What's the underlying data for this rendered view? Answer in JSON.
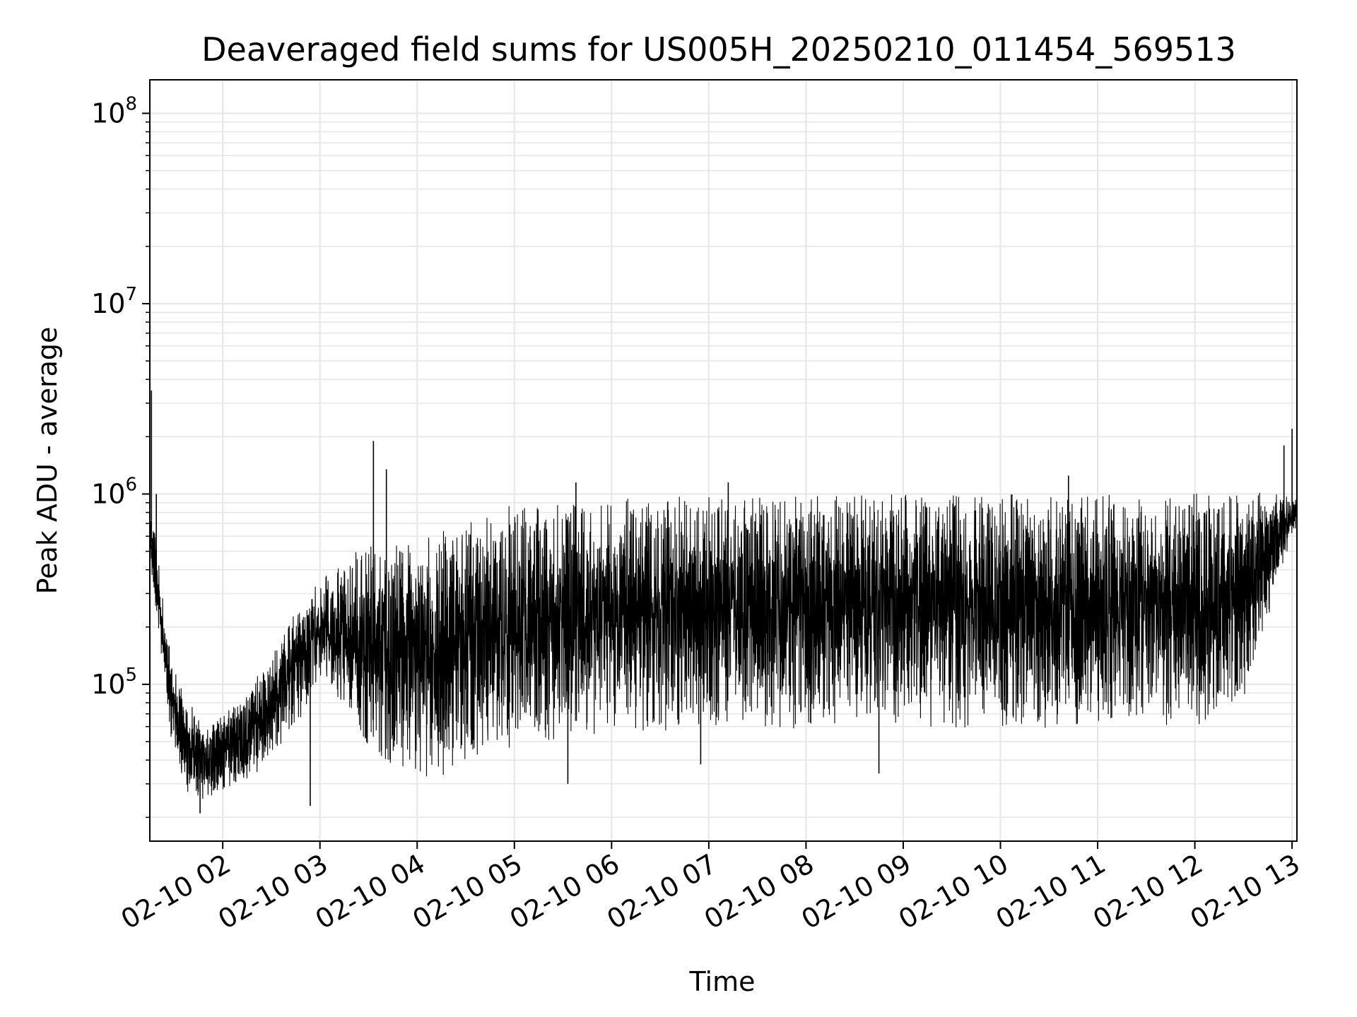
{
  "chart_data": {
    "type": "line",
    "title": "Deaveraged field sums for US005H_20250210_011454_569513",
    "xlabel": "Time",
    "ylabel": "Peak ADU - average",
    "yscale": "log",
    "ylim": [
      15000,
      150000000
    ],
    "xlim": [
      "2025-02-10 01:15",
      "2025-02-10 13:03"
    ],
    "grid": true,
    "line_color": "#000000",
    "grid_color": "#e6e6e6",
    "x_ticks": [
      {
        "t": "2025-02-10 02:00",
        "label": "02-10 02"
      },
      {
        "t": "2025-02-10 03:00",
        "label": "02-10 03"
      },
      {
        "t": "2025-02-10 04:00",
        "label": "02-10 04"
      },
      {
        "t": "2025-02-10 05:00",
        "label": "02-10 05"
      },
      {
        "t": "2025-02-10 06:00",
        "label": "02-10 06"
      },
      {
        "t": "2025-02-10 07:00",
        "label": "02-10 07"
      },
      {
        "t": "2025-02-10 08:00",
        "label": "02-10 08"
      },
      {
        "t": "2025-02-10 09:00",
        "label": "02-10 09"
      },
      {
        "t": "2025-02-10 10:00",
        "label": "02-10 10"
      },
      {
        "t": "2025-02-10 11:00",
        "label": "02-10 11"
      },
      {
        "t": "2025-02-10 12:00",
        "label": "02-10 12"
      },
      {
        "t": "2025-02-10 13:00",
        "label": "02-10 13"
      }
    ],
    "y_ticks": [
      {
        "value": 100000,
        "base": "10",
        "exp": "5"
      },
      {
        "value": 1000000,
        "base": "10",
        "exp": "6"
      },
      {
        "value": 10000000,
        "base": "10",
        "exp": "7"
      },
      {
        "value": 100000000,
        "base": "10",
        "exp": "8"
      }
    ],
    "envelope": [
      {
        "t": "2025-02-10 01:15",
        "low": 450000,
        "high": 900000
      },
      {
        "t": "2025-02-10 01:20",
        "low": 200000,
        "high": 500000
      },
      {
        "t": "2025-02-10 01:25",
        "low": 80000,
        "high": 200000
      },
      {
        "t": "2025-02-10 01:30",
        "low": 40000,
        "high": 120000
      },
      {
        "t": "2025-02-10 01:40",
        "low": 25000,
        "high": 80000
      },
      {
        "t": "2025-02-10 01:50",
        "low": 25000,
        "high": 60000
      },
      {
        "t": "2025-02-10 02:00",
        "low": 28000,
        "high": 70000
      },
      {
        "t": "2025-02-10 02:15",
        "low": 30000,
        "high": 90000
      },
      {
        "t": "2025-02-10 02:30",
        "low": 40000,
        "high": 150000
      },
      {
        "t": "2025-02-10 02:45",
        "low": 60000,
        "high": 250000
      },
      {
        "t": "2025-02-10 03:00",
        "low": 100000,
        "high": 350000
      },
      {
        "t": "2025-02-10 03:15",
        "low": 80000,
        "high": 450000
      },
      {
        "t": "2025-02-10 03:30",
        "low": 45000,
        "high": 550000
      },
      {
        "t": "2025-02-10 03:45",
        "low": 35000,
        "high": 550000
      },
      {
        "t": "2025-02-10 04:00",
        "low": 32000,
        "high": 600000
      },
      {
        "t": "2025-02-10 04:15",
        "low": 33000,
        "high": 650000
      },
      {
        "t": "2025-02-10 04:30",
        "low": 38000,
        "high": 700000
      },
      {
        "t": "2025-02-10 04:45",
        "low": 42000,
        "high": 820000
      },
      {
        "t": "2025-02-10 05:00",
        "low": 45000,
        "high": 880000
      },
      {
        "t": "2025-02-10 06:00",
        "low": 55000,
        "high": 950000
      },
      {
        "t": "2025-02-10 07:00",
        "low": 58000,
        "high": 990000
      },
      {
        "t": "2025-02-10 08:00",
        "low": 58000,
        "high": 1000000
      },
      {
        "t": "2025-02-10 09:00",
        "low": 60000,
        "high": 1000000
      },
      {
        "t": "2025-02-10 10:00",
        "low": 58000,
        "high": 1000000
      },
      {
        "t": "2025-02-10 11:00",
        "low": 60000,
        "high": 1000000
      },
      {
        "t": "2025-02-10 11:30",
        "low": 60000,
        "high": 1020000
      },
      {
        "t": "2025-02-10 12:00",
        "low": 60000,
        "high": 1020000
      },
      {
        "t": "2025-02-10 12:30",
        "low": 80000,
        "high": 1000000
      },
      {
        "t": "2025-02-10 12:50",
        "low": 300000,
        "high": 1050000
      },
      {
        "t": "2025-02-10 13:03",
        "low": 700000,
        "high": 950000
      }
    ],
    "spikes": [
      {
        "t": "2025-02-10 01:16",
        "value": 3500000
      },
      {
        "t": "2025-02-10 01:19",
        "value": 1000000
      },
      {
        "t": "2025-02-10 03:33",
        "value": 1900000
      },
      {
        "t": "2025-02-10 03:41",
        "value": 1350000
      },
      {
        "t": "2025-02-10 02:54",
        "value": 23000
      },
      {
        "t": "2025-02-10 01:46",
        "value": 21000
      },
      {
        "t": "2025-02-10 05:38",
        "value": 1150000
      },
      {
        "t": "2025-02-10 07:12",
        "value": 1150000
      },
      {
        "t": "2025-02-10 10:42",
        "value": 1250000
      },
      {
        "t": "2025-02-10 12:55",
        "value": 1800000
      },
      {
        "t": "2025-02-10 13:00",
        "value": 2200000
      },
      {
        "t": "2025-02-10 08:45",
        "value": 34000
      },
      {
        "t": "2025-02-10 05:33",
        "value": 30000
      },
      {
        "t": "2025-02-10 06:55",
        "value": 38000
      }
    ]
  }
}
